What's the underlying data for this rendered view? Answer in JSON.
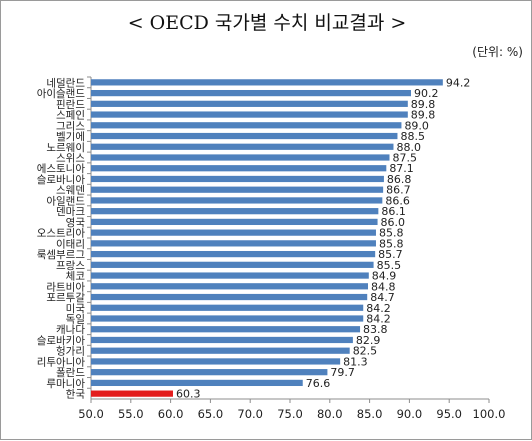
{
  "chart_data": {
    "type": "bar",
    "orientation": "horizontal",
    "title": "< OECD 국가별 수치 비교결과 >",
    "unit_note": "(단위: %)",
    "xlim": [
      50.0,
      100.0
    ],
    "xticks": [
      "50.0",
      "55.0",
      "60.0",
      "65.0",
      "70.0",
      "75.0",
      "80.0",
      "85.0",
      "90.0",
      "95.0",
      "100.0"
    ],
    "grid": false,
    "colors": {
      "bar": "#4f81bd",
      "highlight": "#e31c1c"
    },
    "highlight_category": "한국",
    "categories": [
      "네덜란드",
      "아이슬랜드",
      "핀란드",
      "스페인",
      "그리스",
      "벨기에",
      "노르웨이",
      "스위스",
      "에스토니아",
      "슬로바니아",
      "스웨덴",
      "아일랜드",
      "덴마크",
      "영국",
      "오스트리아",
      "이태리",
      "룩셈부르그",
      "프랑스",
      "체코",
      "라트비아",
      "포르투갈",
      "미국",
      "독일",
      "캐나다",
      "슬로바키아",
      "헝가리",
      "리투아니아",
      "폴란드",
      "루마니아",
      "한국"
    ],
    "values": [
      94.2,
      90.2,
      89.8,
      89.8,
      89.0,
      88.5,
      88.0,
      87.5,
      87.1,
      86.8,
      86.7,
      86.6,
      86.1,
      86.0,
      85.8,
      85.8,
      85.7,
      85.5,
      84.9,
      84.8,
      84.7,
      84.2,
      84.2,
      83.8,
      82.9,
      82.5,
      81.3,
      79.7,
      76.6,
      60.3
    ],
    "value_labels": [
      "94.2",
      "90.2",
      "89.8",
      "89.8",
      "89.0",
      "88.5",
      "88.0",
      "87.5",
      "87.1",
      "86.8",
      "86.7",
      "86.6",
      "86.1",
      "86.0",
      "85.8",
      "85.8",
      "85.7",
      "85.5",
      "84.9",
      "84.8",
      "84.7",
      "84.2",
      "84.2",
      "83.8",
      "82.9",
      "82.5",
      "81.3",
      "79.7",
      "76.6",
      "60.3"
    ]
  }
}
